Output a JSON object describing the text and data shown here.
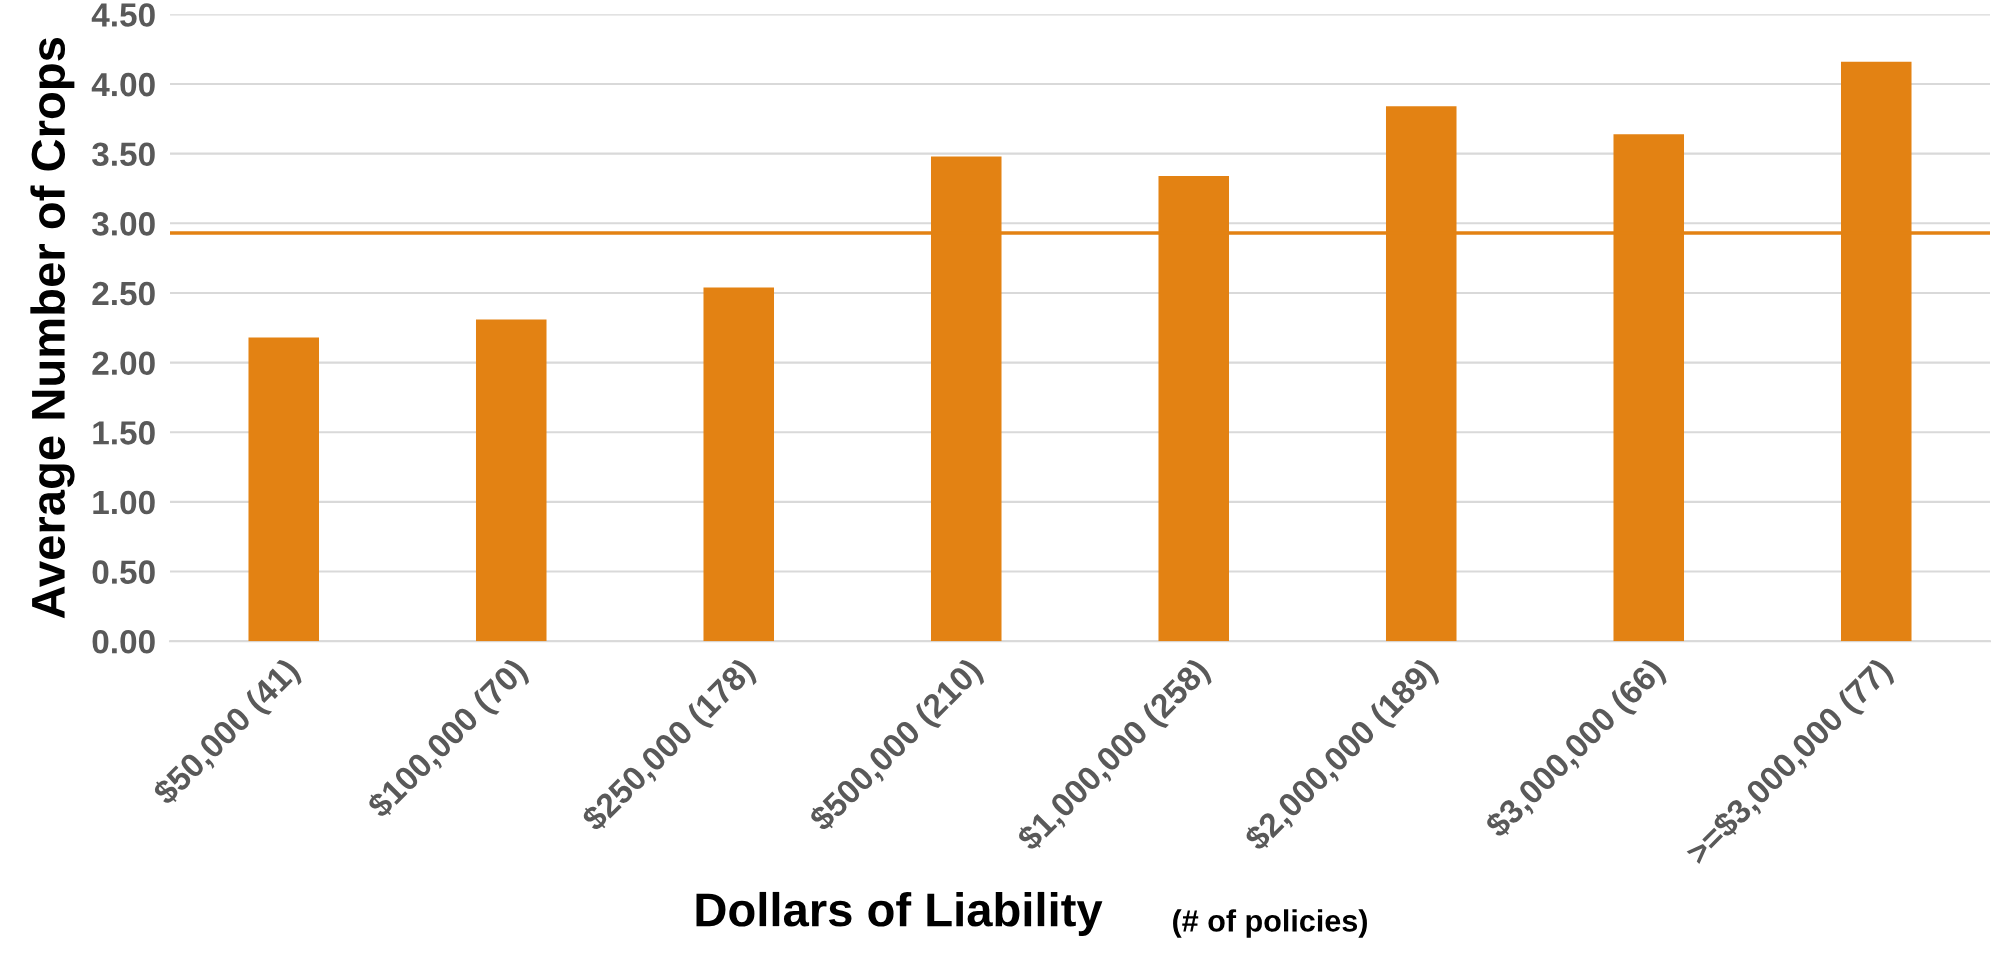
{
  "chart_data": {
    "type": "bar",
    "ylabel": "Average Number of Crops",
    "xlabel": "Dollars of Liability",
    "annotations": [
      "(# of policies)"
    ],
    "categories": [
      "$50,000 (41)",
      "$100,000 (70)",
      "$250,000 (178)",
      "$500,000 (210)",
      "$1,000,000 (258)",
      "$2,000,000 (189)",
      "$3,000,000 (66)",
      ">=$3,000,000 (77)"
    ],
    "values": [
      2.18,
      2.31,
      2.54,
      3.48,
      3.34,
      3.84,
      3.64,
      4.16
    ],
    "color": "#e38213",
    "ylim": [
      0,
      4.5
    ],
    "yticks": [
      {
        "value": 0,
        "label": "0.00"
      },
      {
        "value": 0.5,
        "label": "0.50"
      },
      {
        "value": 1,
        "label": "1.00"
      },
      {
        "value": 1.5,
        "label": "1.50"
      },
      {
        "value": 2,
        "label": "2.00"
      },
      {
        "value": 2.5,
        "label": "2.50"
      },
      {
        "value": 3,
        "label": "3.00"
      },
      {
        "value": 3.5,
        "label": "3.50"
      },
      {
        "value": 4,
        "label": "4.00"
      },
      {
        "value": 4.5,
        "label": "4.50"
      }
    ],
    "grid": "y",
    "ref_lines": [
      {
        "axis": "y",
        "value": 2.93,
        "label": null,
        "color": "#e38213"
      }
    ]
  }
}
